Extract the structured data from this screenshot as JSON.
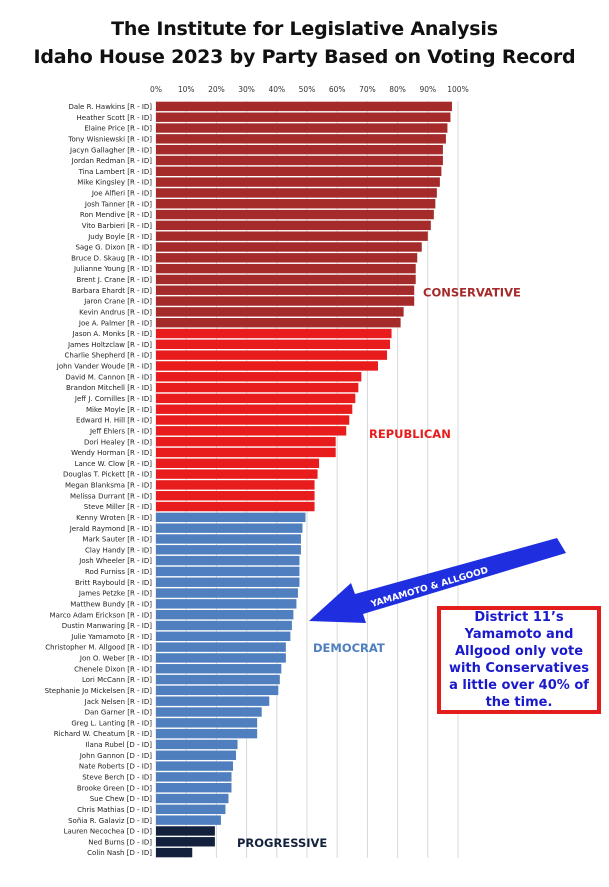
{
  "title_line1": "The Institute for Legislative Analysis",
  "title_line2": "Idaho House 2023 by Party Based on Voting Record",
  "arrow_label": "YAMAMOTO & ALLGOOD",
  "callout_text": "District 11’s Yamamoto and Allgood only vote with Conservatives a little over 40% of the time.",
  "colors": {
    "conservative": "#a52a2a",
    "republican": "#e81c1c",
    "democrat": "#4f7fbf",
    "progressive": "#14213d",
    "arrow": "#1f2fe0",
    "callout_border": "#e31c1c",
    "callout_text": "#1a1acc"
  },
  "chart_data": {
    "type": "bar",
    "orientation": "horizontal",
    "xlim": [
      0,
      100
    ],
    "x_tick_labels": [
      "0%",
      "10%",
      "20%",
      "30%",
      "40%",
      "50%",
      "60%",
      "70%",
      "80%",
      "90%",
      "100%"
    ],
    "grid": true,
    "group_labels": [
      {
        "label": "CONSERVATIVE",
        "group": "conservative"
      },
      {
        "label": "REPUBLICAN",
        "group": "republican"
      },
      {
        "label": "DEMOCRAT",
        "group": "democrat"
      },
      {
        "label": "PROGRESSIVE",
        "group": "progressive"
      }
    ],
    "bars": [
      {
        "name": "Dale R. Hawkins [R - ID]",
        "value": 98,
        "group": "conservative"
      },
      {
        "name": "Heather Scott [R - ID]",
        "value": 97.5,
        "group": "conservative"
      },
      {
        "name": "Elaine Price [R - ID]",
        "value": 96.5,
        "group": "conservative"
      },
      {
        "name": "Tony Wisniewski [R - ID]",
        "value": 96,
        "group": "conservative"
      },
      {
        "name": "Jacyn Gallagher [R - ID]",
        "value": 95,
        "group": "conservative"
      },
      {
        "name": "Jordan Redman [R - ID]",
        "value": 95,
        "group": "conservative"
      },
      {
        "name": "Tina Lambert [R - ID]",
        "value": 94.5,
        "group": "conservative"
      },
      {
        "name": "Mike Kingsley [R - ID]",
        "value": 94,
        "group": "conservative"
      },
      {
        "name": "Joe Alfieri [R - ID]",
        "value": 93,
        "group": "conservative"
      },
      {
        "name": "Josh Tanner [R - ID]",
        "value": 92.5,
        "group": "conservative"
      },
      {
        "name": "Ron Mendive [R - ID]",
        "value": 92,
        "group": "conservative"
      },
      {
        "name": "Vito Barbieri [R - ID]",
        "value": 91,
        "group": "conservative"
      },
      {
        "name": "Judy Boyle [R - ID]",
        "value": 90,
        "group": "conservative"
      },
      {
        "name": "Sage G. Dixon [R - ID]",
        "value": 88,
        "group": "conservative"
      },
      {
        "name": "Bruce D. Skaug [R - ID]",
        "value": 86.5,
        "group": "conservative"
      },
      {
        "name": "Julianne Young [R - ID]",
        "value": 86,
        "group": "conservative"
      },
      {
        "name": "Brent J. Crane [R - ID]",
        "value": 86,
        "group": "conservative"
      },
      {
        "name": "Barbara Ehardt [R - ID]",
        "value": 85.5,
        "group": "conservative"
      },
      {
        "name": "Jaron Crane [R - ID]",
        "value": 85.5,
        "group": "conservative"
      },
      {
        "name": "Kevin Andrus [R - ID]",
        "value": 82,
        "group": "conservative"
      },
      {
        "name": "Joe A. Palmer [R - ID]",
        "value": 81,
        "group": "conservative"
      },
      {
        "name": "Jason A. Monks [R - ID]",
        "value": 78,
        "group": "republican"
      },
      {
        "name": "James Holtzclaw [R - ID]",
        "value": 77.5,
        "group": "republican"
      },
      {
        "name": "Charlie Shepherd [R - ID]",
        "value": 76.5,
        "group": "republican"
      },
      {
        "name": "John Vander Woude [R - ID]",
        "value": 73.5,
        "group": "republican"
      },
      {
        "name": "David M. Cannon [R - ID]",
        "value": 68,
        "group": "republican"
      },
      {
        "name": "Brandon Mitchell [R - ID]",
        "value": 67,
        "group": "republican"
      },
      {
        "name": "Jeff J. Cornilles [R - ID]",
        "value": 66,
        "group": "republican"
      },
      {
        "name": "Mike Moyle [R - ID]",
        "value": 65,
        "group": "republican"
      },
      {
        "name": "Edward H. Hill [R - ID]",
        "value": 64,
        "group": "republican"
      },
      {
        "name": "Jeff Ehlers [R - ID]",
        "value": 63,
        "group": "republican"
      },
      {
        "name": "Dori Healey [R - ID]",
        "value": 59.5,
        "group": "republican"
      },
      {
        "name": "Wendy Horman [R - ID]",
        "value": 59.5,
        "group": "republican"
      },
      {
        "name": "Lance W. Clow [R - ID]",
        "value": 54,
        "group": "republican"
      },
      {
        "name": "Douglas T. Pickett [R - ID]",
        "value": 53.5,
        "group": "republican"
      },
      {
        "name": "Megan Blanksma [R - ID]",
        "value": 52.5,
        "group": "republican"
      },
      {
        "name": "Melissa Durrant [R - ID]",
        "value": 52.5,
        "group": "republican"
      },
      {
        "name": "Steve Miller [R - ID]",
        "value": 52.5,
        "group": "republican"
      },
      {
        "name": "Kenny Wroten [R - ID]",
        "value": 49.5,
        "group": "democrat"
      },
      {
        "name": "Jerald Raymond [R - ID]",
        "value": 48.5,
        "group": "democrat"
      },
      {
        "name": "Mark Sauter [R - ID]",
        "value": 48,
        "group": "democrat"
      },
      {
        "name": "Clay Handy [R - ID]",
        "value": 48,
        "group": "democrat"
      },
      {
        "name": "Josh Wheeler [R - ID]",
        "value": 47.5,
        "group": "democrat"
      },
      {
        "name": "Rod Furniss [R - ID]",
        "value": 47.5,
        "group": "democrat"
      },
      {
        "name": "Britt Raybould [R - ID]",
        "value": 47.5,
        "group": "democrat"
      },
      {
        "name": "James Petzke [R - ID]",
        "value": 47,
        "group": "democrat"
      },
      {
        "name": "Matthew Bundy [R - ID]",
        "value": 46.5,
        "group": "democrat"
      },
      {
        "name": "Marco Adam Erickson [R - ID]",
        "value": 45.5,
        "group": "democrat"
      },
      {
        "name": "Dustin Manwaring [R - ID]",
        "value": 45,
        "group": "democrat"
      },
      {
        "name": "Julie Yamamoto [R - ID]",
        "value": 44.5,
        "group": "democrat"
      },
      {
        "name": "Christopher M. Allgood [R - ID]",
        "value": 43,
        "group": "democrat"
      },
      {
        "name": "Jon O. Weber [R - ID]",
        "value": 43,
        "group": "democrat"
      },
      {
        "name": "Chenele Dixon [R - ID]",
        "value": 41.5,
        "group": "democrat"
      },
      {
        "name": "Lori McCann [R - ID]",
        "value": 41,
        "group": "democrat"
      },
      {
        "name": "Stephanie Jo Mickelsen [R - ID]",
        "value": 40.5,
        "group": "democrat"
      },
      {
        "name": "Jack Nelsen [R - ID]",
        "value": 37.5,
        "group": "democrat"
      },
      {
        "name": "Dan Garner [R - ID]",
        "value": 35,
        "group": "democrat"
      },
      {
        "name": "Greg L. Lanting [R - ID]",
        "value": 33.5,
        "group": "democrat"
      },
      {
        "name": "Richard W. Cheatum [R - ID]",
        "value": 33.5,
        "group": "democrat"
      },
      {
        "name": "Ilana Rubel [D - ID]",
        "value": 27,
        "group": "democrat"
      },
      {
        "name": "John Gannon [D - ID]",
        "value": 26.5,
        "group": "democrat"
      },
      {
        "name": "Nate Roberts [D - ID]",
        "value": 25.5,
        "group": "democrat"
      },
      {
        "name": "Steve Berch [D - ID]",
        "value": 25,
        "group": "democrat"
      },
      {
        "name": "Brooke Green [D - ID]",
        "value": 25,
        "group": "democrat"
      },
      {
        "name": "Sue Chew [D - ID]",
        "value": 24,
        "group": "democrat"
      },
      {
        "name": "Chris Mathias [D - ID]",
        "value": 23,
        "group": "democrat"
      },
      {
        "name": "Soñia R. Galaviz [D - ID]",
        "value": 21.5,
        "group": "democrat"
      },
      {
        "name": "Lauren Necochea [D - ID]",
        "value": 19.5,
        "group": "progressive"
      },
      {
        "name": "Ned Burns [D - ID]",
        "value": 19.5,
        "group": "progressive"
      },
      {
        "name": "Colin Nash [D - ID]",
        "value": 12,
        "group": "progressive"
      }
    ]
  }
}
